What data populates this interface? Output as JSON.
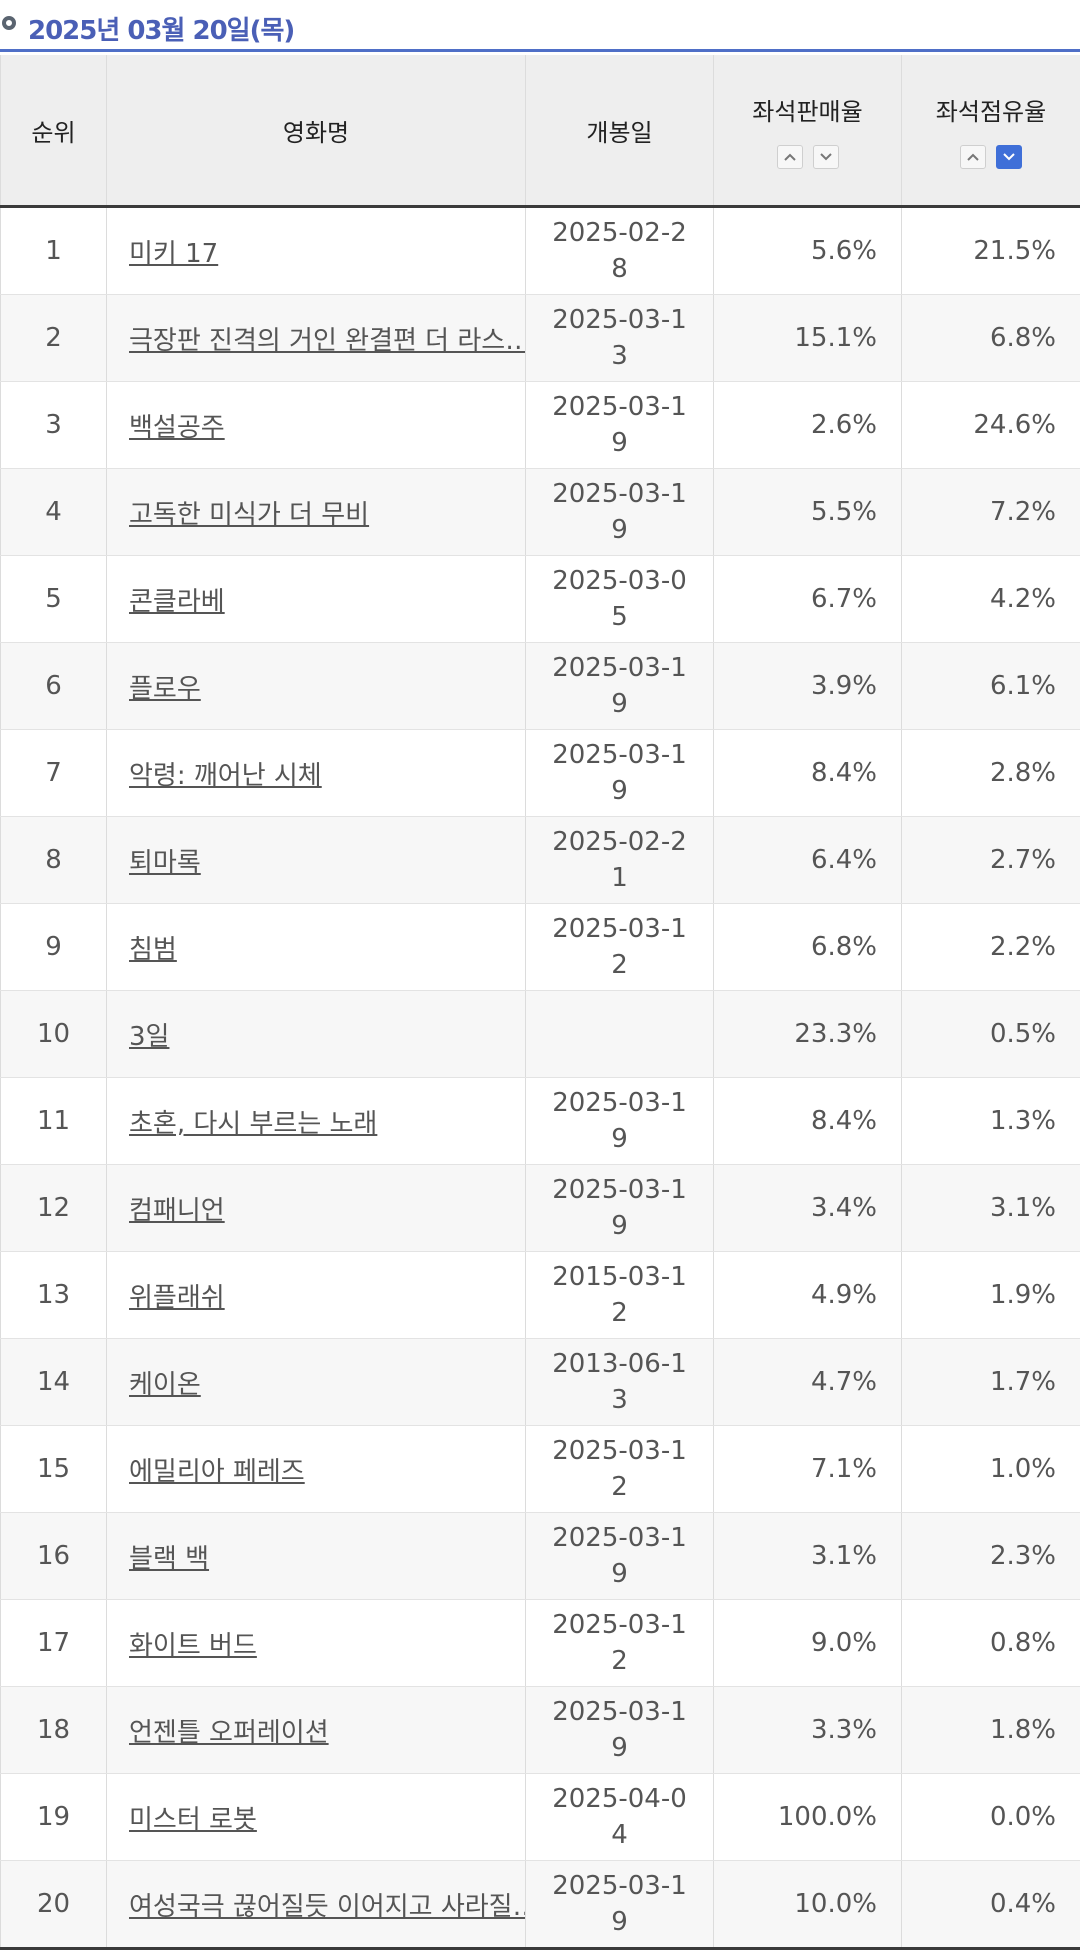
{
  "header": {
    "date": "2025년 03월 20일(목)"
  },
  "table": {
    "columns": {
      "rank": "순위",
      "title": "영화명",
      "release": "개봉일",
      "sales": "좌석판매율",
      "share": "좌석점유율"
    },
    "sort": {
      "sales": "none",
      "share": "desc"
    },
    "rows": [
      {
        "rank": "1",
        "title": "미키 17",
        "release": "2025-02-28",
        "sales": "5.6%",
        "share": "21.5%"
      },
      {
        "rank": "2",
        "title": "극장판 진격의 거인 완결편 더 라스…",
        "release": "2025-03-13",
        "sales": "15.1%",
        "share": "6.8%"
      },
      {
        "rank": "3",
        "title": "백설공주",
        "release": "2025-03-19",
        "sales": "2.6%",
        "share": "24.6%"
      },
      {
        "rank": "4",
        "title": "고독한 미식가 더 무비",
        "release": "2025-03-19",
        "sales": "5.5%",
        "share": "7.2%"
      },
      {
        "rank": "5",
        "title": "콘클라베",
        "release": "2025-03-05",
        "sales": "6.7%",
        "share": "4.2%"
      },
      {
        "rank": "6",
        "title": "플로우",
        "release": "2025-03-19",
        "sales": "3.9%",
        "share": "6.1%"
      },
      {
        "rank": "7",
        "title": "악령: 깨어난 시체",
        "release": "2025-03-19",
        "sales": "8.4%",
        "share": "2.8%"
      },
      {
        "rank": "8",
        "title": "퇴마록",
        "release": "2025-02-21",
        "sales": "6.4%",
        "share": "2.7%"
      },
      {
        "rank": "9",
        "title": "침범",
        "release": "2025-03-12",
        "sales": "6.8%",
        "share": "2.2%"
      },
      {
        "rank": "10",
        "title": "3일",
        "release": "",
        "sales": "23.3%",
        "share": "0.5%"
      },
      {
        "rank": "11",
        "title": "초혼, 다시 부르는 노래",
        "release": "2025-03-19",
        "sales": "8.4%",
        "share": "1.3%"
      },
      {
        "rank": "12",
        "title": "컴패니언",
        "release": "2025-03-19",
        "sales": "3.4%",
        "share": "3.1%"
      },
      {
        "rank": "13",
        "title": "위플래쉬",
        "release": "2015-03-12",
        "sales": "4.9%",
        "share": "1.9%"
      },
      {
        "rank": "14",
        "title": "케이온",
        "release": "2013-06-13",
        "sales": "4.7%",
        "share": "1.7%"
      },
      {
        "rank": "15",
        "title": "에밀리아 페레즈",
        "release": "2025-03-12",
        "sales": "7.1%",
        "share": "1.0%"
      },
      {
        "rank": "16",
        "title": "블랙 백",
        "release": "2025-03-19",
        "sales": "3.1%",
        "share": "2.3%"
      },
      {
        "rank": "17",
        "title": "화이트 버드",
        "release": "2025-03-12",
        "sales": "9.0%",
        "share": "0.8%"
      },
      {
        "rank": "18",
        "title": "언젠틀 오퍼레이션",
        "release": "2025-03-19",
        "sales": "3.3%",
        "share": "1.8%"
      },
      {
        "rank": "19",
        "title": "미스터 로봇",
        "release": "2025-04-04",
        "sales": "100.0%",
        "share": "0.0%"
      },
      {
        "rank": "20",
        "title": "여성국극 끊어질듯 이어지고 사라질…",
        "release": "2025-03-19",
        "sales": "10.0%",
        "share": "0.4%"
      }
    ]
  },
  "colors": {
    "accent": "#4a5fb6",
    "sort_active": "#3f6fd8",
    "header_bg": "#eeeeee"
  }
}
